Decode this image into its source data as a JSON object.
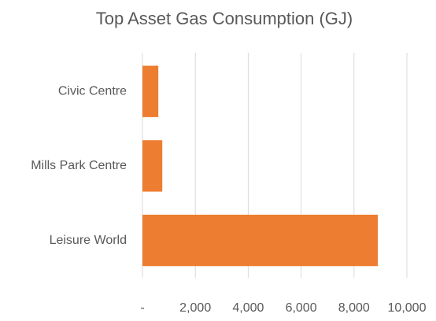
{
  "chart_data": {
    "type": "barh",
    "title": "Top Asset Gas Consumption (GJ)",
    "categories": [
      "Civic Centre",
      "Mills Park Centre",
      "Leisure World"
    ],
    "values": [
      600,
      750,
      8900
    ],
    "color": "#ED7D31",
    "xlim": [
      0,
      10000
    ],
    "xticks": [
      {
        "value": 0,
        "label": "-"
      },
      {
        "value": 2000,
        "label": "2,000"
      },
      {
        "value": 4000,
        "label": "4,000"
      },
      {
        "value": 6000,
        "label": "6,000"
      },
      {
        "value": 8000,
        "label": "8,000"
      },
      {
        "value": 10000,
        "label": "10,000"
      }
    ],
    "grid": true
  }
}
